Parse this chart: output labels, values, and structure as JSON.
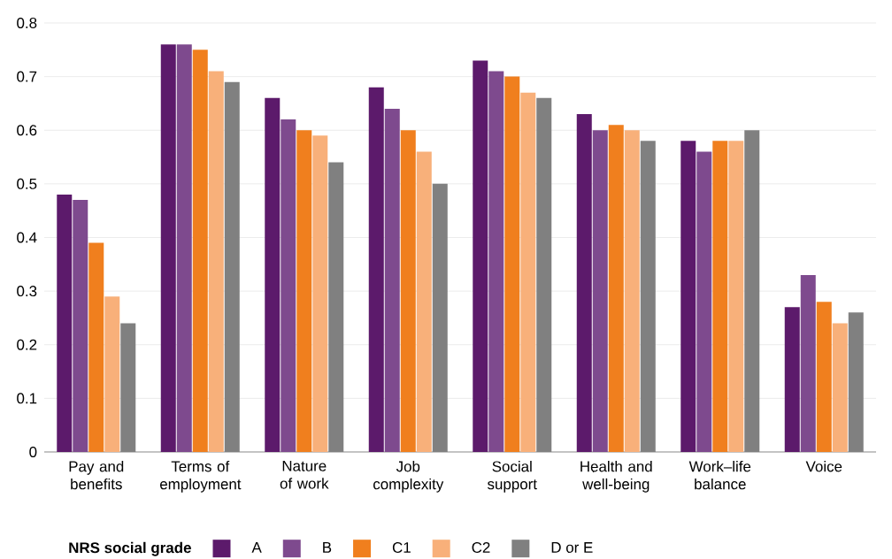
{
  "chart_data": {
    "type": "bar",
    "categories": [
      "Pay and benefits",
      "Terms of employment",
      "Nature of work",
      "Job complexity",
      "Social support",
      "Health and well-being",
      "Work–life balance",
      "Voice"
    ],
    "series": [
      {
        "name": "A",
        "color": "#5c1a6b",
        "values": [
          0.48,
          0.76,
          0.66,
          0.68,
          0.73,
          0.63,
          0.58,
          0.27
        ]
      },
      {
        "name": "B",
        "color": "#7e4a8e",
        "values": [
          0.47,
          0.76,
          0.62,
          0.64,
          0.71,
          0.6,
          0.56,
          0.33
        ]
      },
      {
        "name": "C1",
        "color": "#f07f1e",
        "values": [
          0.39,
          0.75,
          0.6,
          0.6,
          0.7,
          0.61,
          0.58,
          0.28
        ]
      },
      {
        "name": "C2",
        "color": "#f8b07a",
        "values": [
          0.29,
          0.71,
          0.59,
          0.56,
          0.67,
          0.6,
          0.58,
          0.24
        ]
      },
      {
        "name": "D or E",
        "color": "#808080",
        "values": [
          0.24,
          0.69,
          0.54,
          0.5,
          0.66,
          0.58,
          0.6,
          0.26
        ]
      }
    ],
    "legend_title": "NRS social grade",
    "legend": "bottom",
    "grid": "y",
    "ylim": [
      0,
      0.8
    ],
    "yticks": [
      0,
      0.1,
      0.2,
      0.3,
      0.4,
      0.5,
      0.6,
      0.7,
      0.8
    ]
  }
}
